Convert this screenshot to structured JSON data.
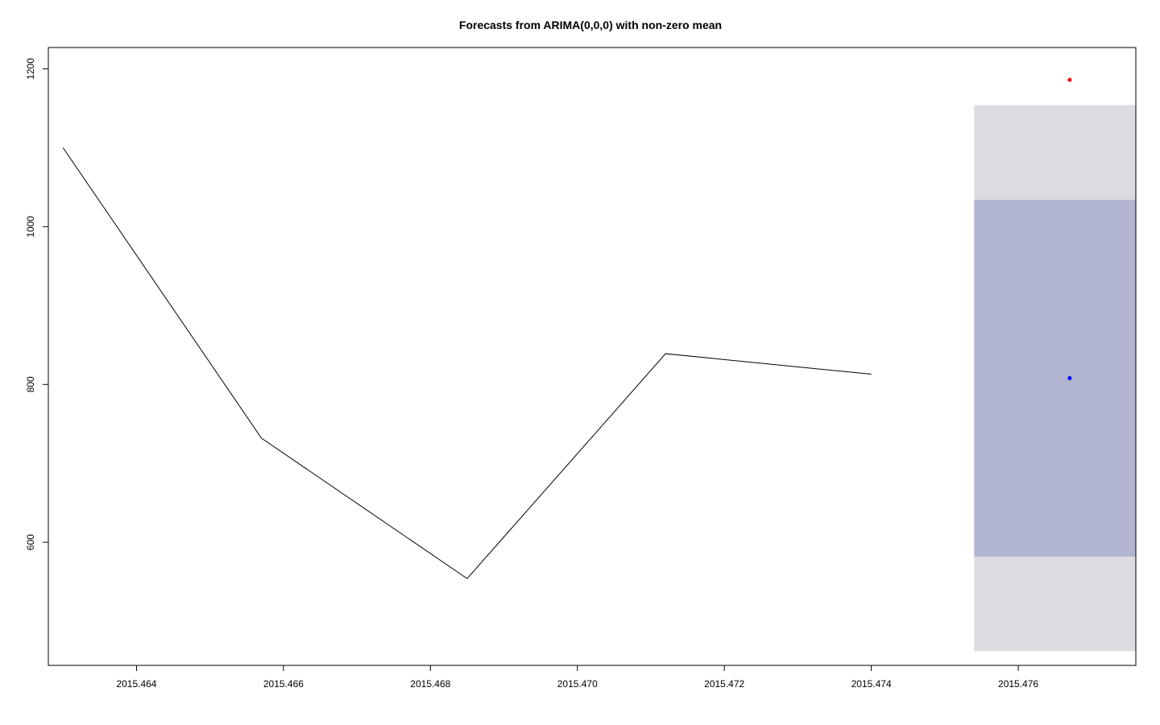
{
  "chart_data": {
    "type": "line",
    "title": "Forecasts from ARIMA(0,0,0) with non-zero mean",
    "xlabel": "",
    "ylabel": "",
    "xlim": [
      2015.4628,
      2015.4776
    ],
    "ylim": [
      444,
      1227
    ],
    "x_ticks": [
      "2015.464",
      "2015.466",
      "2015.468",
      "2015.470",
      "2015.472",
      "2015.474",
      "2015.476"
    ],
    "y_ticks": [
      "600",
      "800",
      "1000",
      "1200"
    ],
    "grid": false,
    "legend": "none",
    "series": [
      {
        "x": [
          2015.463,
          2015.4657,
          2015.4685,
          2015.4712,
          2015.474
        ],
        "y": [
          1100,
          732,
          554,
          839,
          813
        ]
      }
    ],
    "forecast": {
      "x_start": 2015.4754,
      "x_end": 2015.4776,
      "point_x": 2015.4767,
      "mean": 808,
      "interval_80": [
        582,
        1034
      ],
      "interval_95": [
        462,
        1154
      ]
    },
    "extra_point": {
      "x": 2015.4767,
      "y": 1186
    },
    "colors": {
      "line": "#000000",
      "band_80": "#b1b5cf",
      "band_95": "#dbdbe0",
      "forecast_point": "#0000ff",
      "extra_point": "#ff0000"
    }
  }
}
